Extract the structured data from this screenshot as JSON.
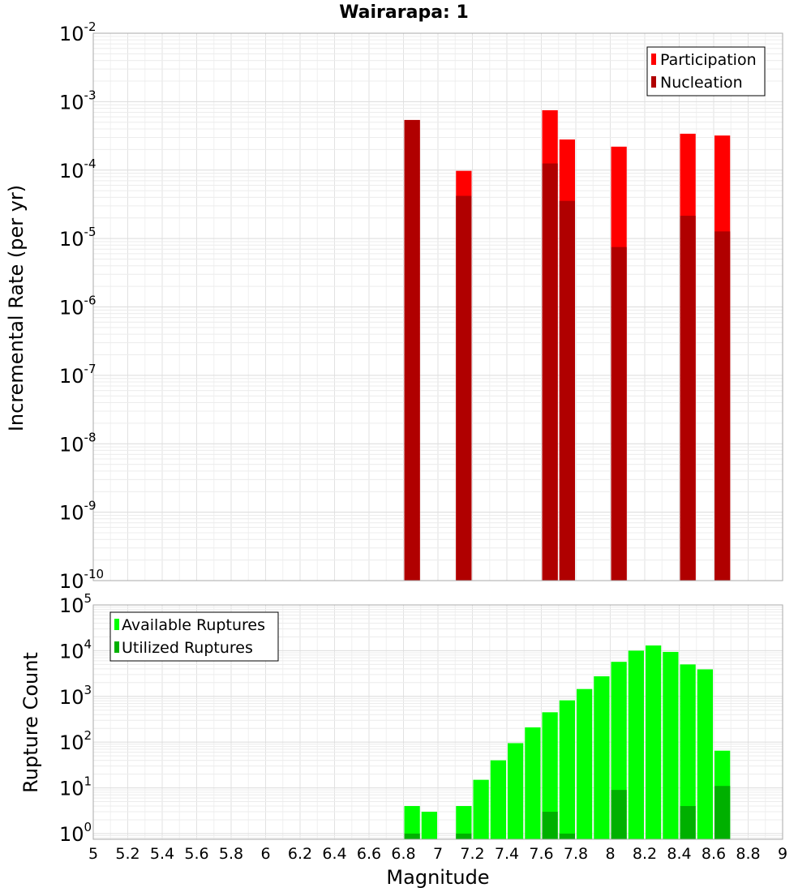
{
  "title": "Wairarapa: 1",
  "chart_data": [
    {
      "type": "bar",
      "scale": "log",
      "ylabel": "Incremental Rate (per yr)",
      "xlim": [
        5,
        9
      ],
      "ylim": [
        1e-10,
        0.01
      ],
      "y_tick_exponents": [
        -10,
        -9,
        -8,
        -7,
        -6,
        -5,
        -4,
        -3,
        -2
      ],
      "x": [
        6.85,
        7.15,
        7.65,
        7.75,
        8.05,
        8.45,
        8.65
      ],
      "series": [
        {
          "name": "Participation",
          "color": "#ff0000",
          "values": [
            0.00054,
            9.75e-05,
            0.00075,
            0.00028,
            0.00022,
            0.00034,
            0.00032
          ]
        },
        {
          "name": "Nucleation",
          "color": "#b00000",
          "values": [
            0.00054,
            4.2e-05,
            0.000125,
            3.55e-05,
            7.5e-06,
            2.15e-05,
            1.27e-05
          ]
        }
      ],
      "legend": "top-right",
      "grid": true
    },
    {
      "type": "bar",
      "scale": "log",
      "xlabel": "Magnitude",
      "ylabel": "Rupture Count",
      "xlim": [
        5,
        9
      ],
      "ylim": [
        0.75,
        100000
      ],
      "y_tick_exponents": [
        0,
        1,
        2,
        3,
        4,
        5
      ],
      "x_ticks": [
        "5",
        "5.2",
        "5.4",
        "5.6",
        "5.8",
        "6",
        "6.2",
        "6.4",
        "6.6",
        "6.8",
        "7",
        "7.2",
        "7.4",
        "7.6",
        "7.8",
        "8",
        "8.2",
        "8.4",
        "8.6",
        "8.8",
        "9"
      ],
      "series": [
        {
          "name": "Available Ruptures",
          "color": "#00ff00",
          "x": [
            6.85,
            6.95,
            7.15,
            7.25,
            7.35,
            7.45,
            7.55,
            7.65,
            7.75,
            7.85,
            7.95,
            8.05,
            8.15,
            8.25,
            8.35,
            8.45,
            8.55,
            8.65
          ],
          "values": [
            4,
            3,
            4,
            15,
            40,
            95,
            210,
            450,
            820,
            1450,
            2750,
            5700,
            10000,
            13000,
            9400,
            5000,
            3900,
            65
          ]
        },
        {
          "name": "Utilized Ruptures",
          "color": "#00b000",
          "x": [
            6.85,
            7.15,
            7.65,
            7.75,
            8.05,
            8.45,
            8.65
          ],
          "values": [
            1,
            1,
            3,
            1,
            9,
            4,
            11
          ]
        }
      ],
      "legend": "top-left",
      "grid": true
    }
  ]
}
